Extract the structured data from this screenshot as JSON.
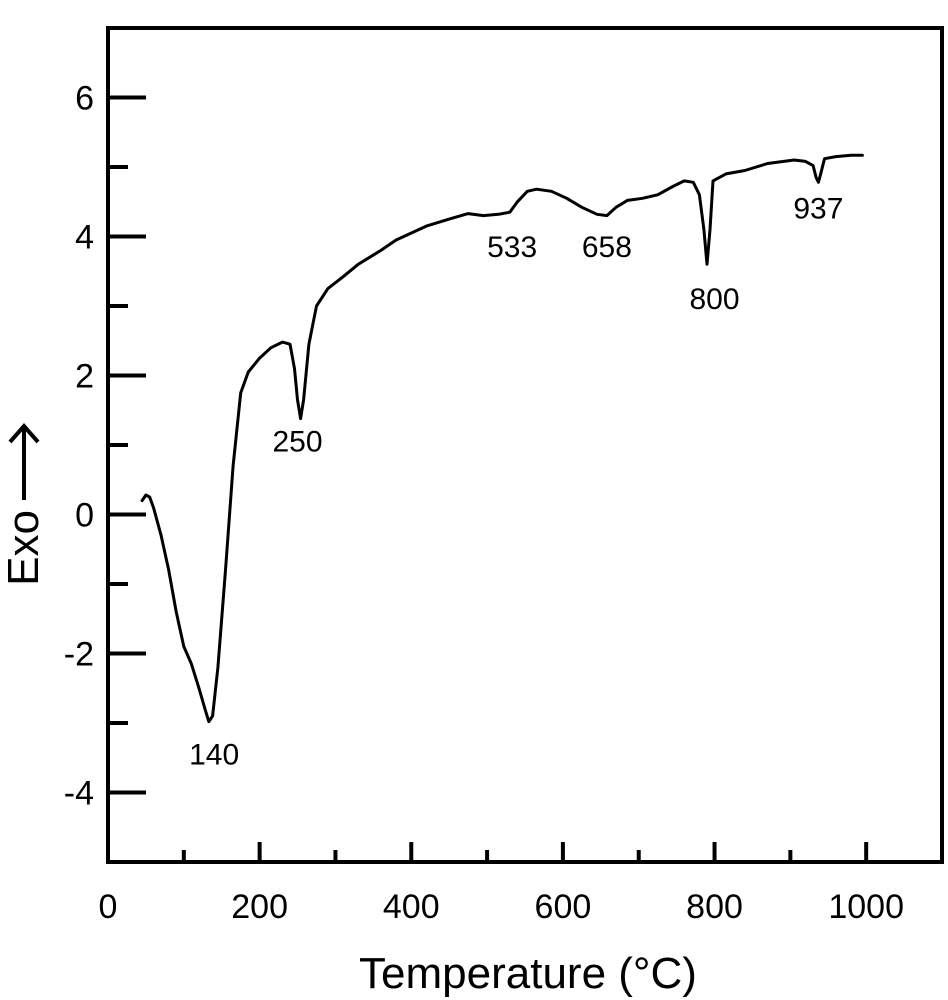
{
  "chart_data": {
    "type": "line",
    "xlabel": "Temperature (°C)",
    "ylabel": "Exo",
    "xlim": [
      0,
      1100
    ],
    "ylim": [
      -5,
      7
    ],
    "x_ticks": [
      0,
      200,
      400,
      600,
      800,
      1000
    ],
    "x_tick_labels": [
      "0",
      "200",
      "400",
      "600",
      "800",
      "1000"
    ],
    "x_minor_ticks": [
      100,
      300,
      500,
      700,
      900
    ],
    "y_ticks": [
      -4,
      -2,
      0,
      2,
      4,
      6
    ],
    "y_tick_labels": [
      "-4",
      "-2",
      "0",
      "2",
      "4",
      "6"
    ],
    "y_minor_ticks": [
      -3,
      -1,
      1,
      3,
      5
    ],
    "grid": false,
    "series": [
      {
        "points": [
          [
            45,
            0.2
          ],
          [
            50,
            0.28
          ],
          [
            55,
            0.25
          ],
          [
            60,
            0.1
          ],
          [
            70,
            -0.3
          ],
          [
            80,
            -0.8
          ],
          [
            90,
            -1.4
          ],
          [
            100,
            -1.9
          ],
          [
            110,
            -2.15
          ],
          [
            120,
            -2.5
          ],
          [
            128,
            -2.8
          ],
          [
            133,
            -2.98
          ],
          [
            138,
            -2.9
          ],
          [
            145,
            -2.2
          ],
          [
            155,
            -0.8
          ],
          [
            165,
            0.7
          ],
          [
            175,
            1.75
          ],
          [
            185,
            2.05
          ],
          [
            200,
            2.25
          ],
          [
            215,
            2.4
          ],
          [
            230,
            2.48
          ],
          [
            240,
            2.45
          ],
          [
            246,
            2.1
          ],
          [
            250,
            1.65
          ],
          [
            254,
            1.38
          ],
          [
            258,
            1.65
          ],
          [
            265,
            2.45
          ],
          [
            275,
            3.0
          ],
          [
            290,
            3.25
          ],
          [
            310,
            3.42
          ],
          [
            330,
            3.6
          ],
          [
            360,
            3.8
          ],
          [
            380,
            3.95
          ],
          [
            420,
            4.15
          ],
          [
            450,
            4.25
          ],
          [
            475,
            4.33
          ],
          [
            495,
            4.3
          ],
          [
            515,
            4.32
          ],
          [
            530,
            4.35
          ],
          [
            540,
            4.5
          ],
          [
            553,
            4.65
          ],
          [
            565,
            4.68
          ],
          [
            585,
            4.65
          ],
          [
            605,
            4.55
          ],
          [
            625,
            4.42
          ],
          [
            645,
            4.32
          ],
          [
            658,
            4.3
          ],
          [
            670,
            4.42
          ],
          [
            685,
            4.52
          ],
          [
            705,
            4.55
          ],
          [
            725,
            4.6
          ],
          [
            745,
            4.72
          ],
          [
            760,
            4.8
          ],
          [
            772,
            4.78
          ],
          [
            780,
            4.6
          ],
          [
            786,
            4.1
          ],
          [
            790,
            3.6
          ],
          [
            794,
            4.1
          ],
          [
            798,
            4.8
          ],
          [
            815,
            4.9
          ],
          [
            840,
            4.95
          ],
          [
            870,
            5.05
          ],
          [
            905,
            5.1
          ],
          [
            920,
            5.08
          ],
          [
            930,
            5.02
          ],
          [
            934,
            4.85
          ],
          [
            937,
            4.78
          ],
          [
            940,
            4.9
          ],
          [
            945,
            5.12
          ],
          [
            960,
            5.15
          ],
          [
            980,
            5.17
          ],
          [
            995,
            5.17
          ]
        ]
      }
    ],
    "annotations": [
      {
        "label": "140",
        "x": 140,
        "y": -3.45
      },
      {
        "label": "250",
        "x": 250,
        "y": 1.05
      },
      {
        "label": "533",
        "x": 533,
        "y": 3.85
      },
      {
        "label": "658",
        "x": 658,
        "y": 3.85
      },
      {
        "label": "800",
        "x": 800,
        "y": 3.1
      },
      {
        "label": "937",
        "x": 937,
        "y": 4.4
      }
    ],
    "line_color": "#000000"
  }
}
